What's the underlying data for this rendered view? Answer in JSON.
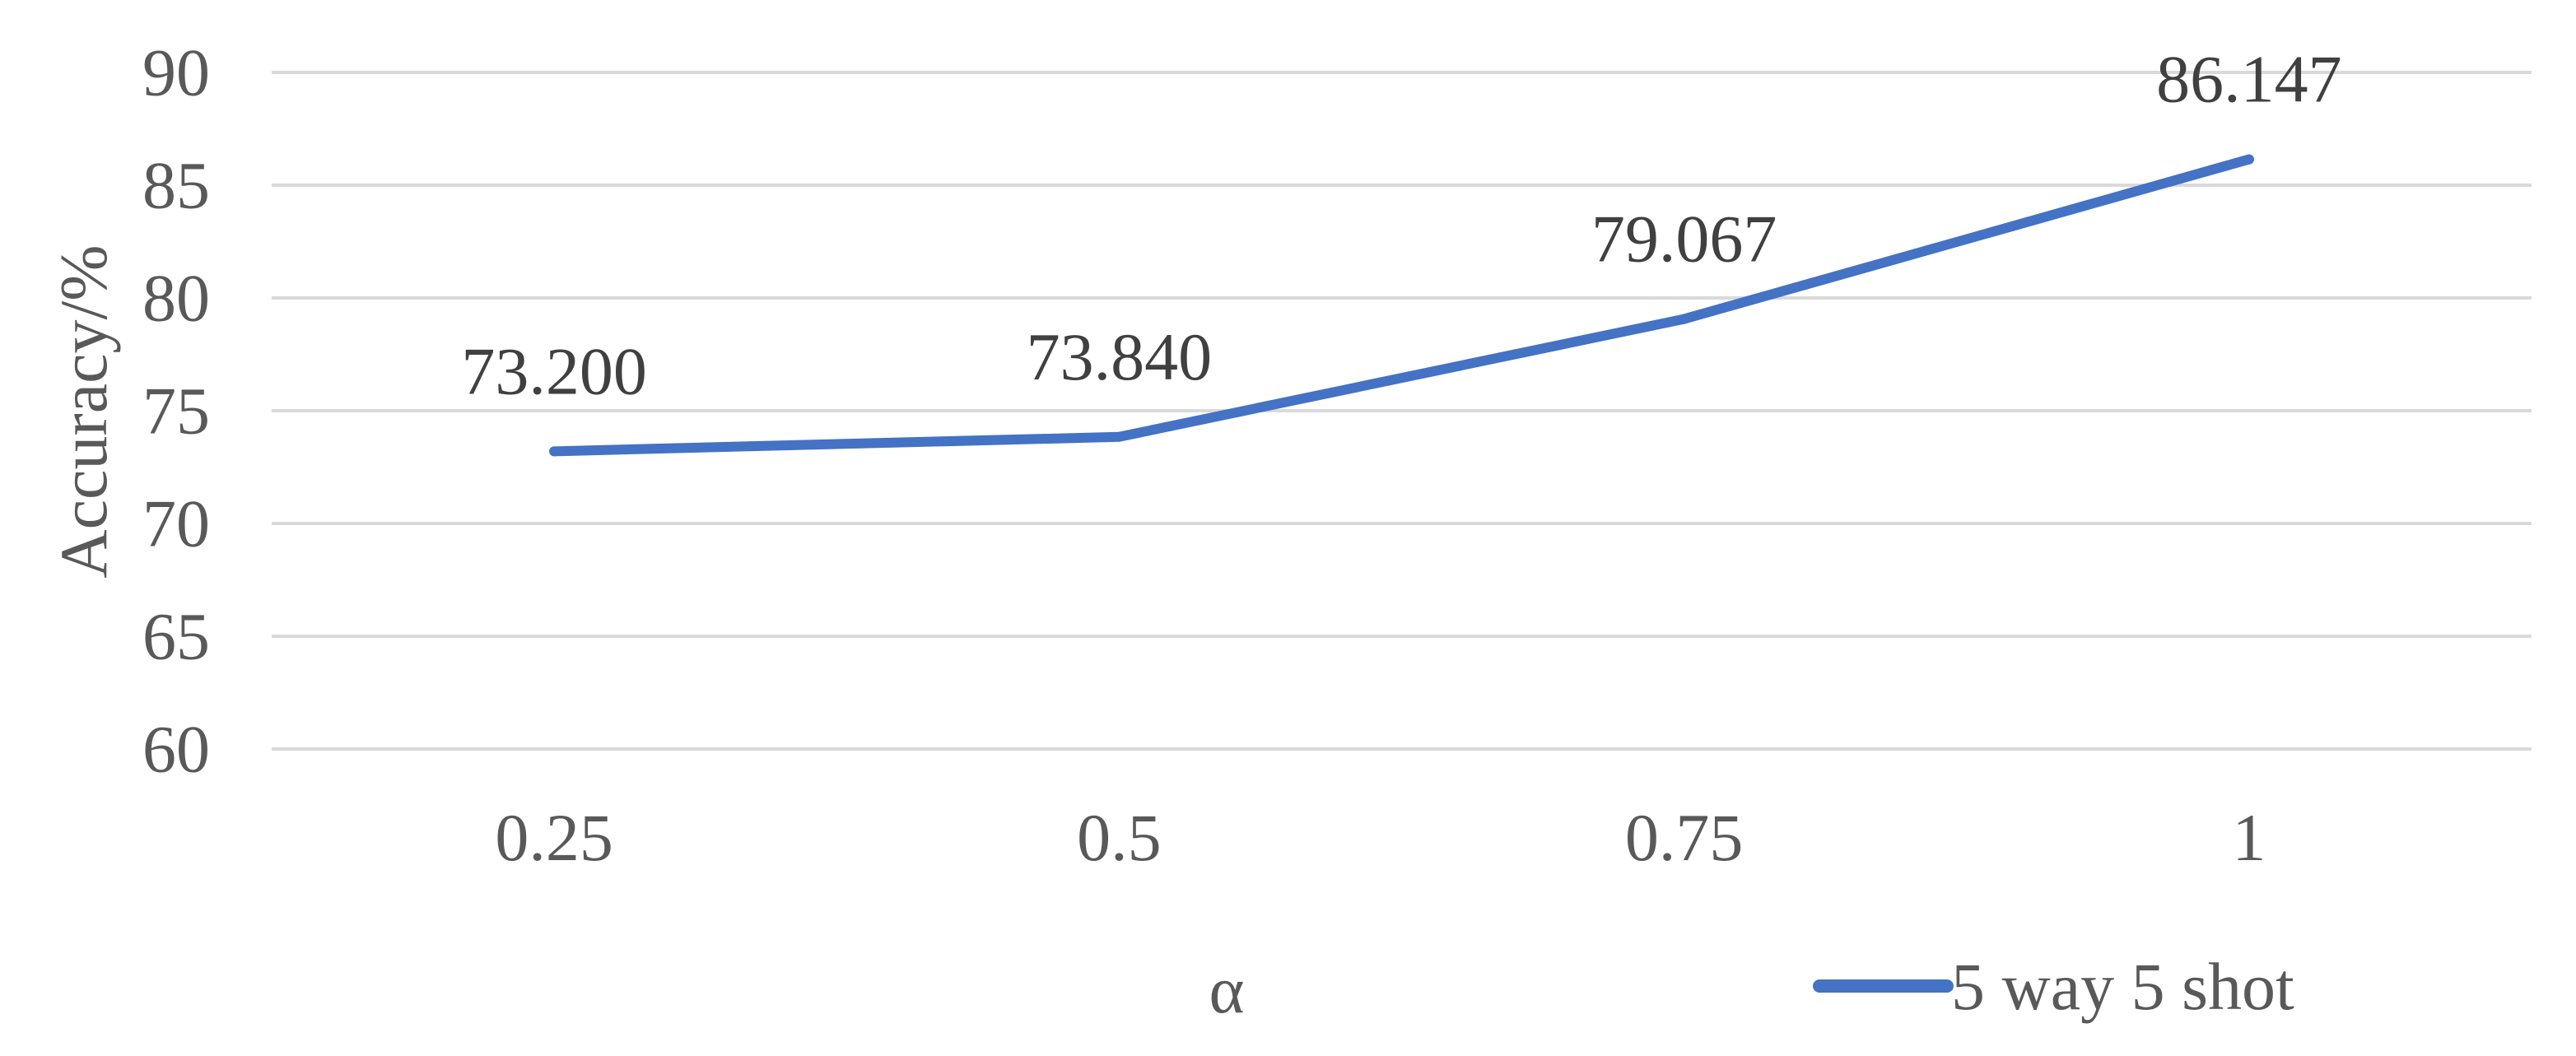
{
  "chart_data": {
    "type": "line",
    "title": "",
    "xlabel": "α",
    "ylabel": "Accuracy/%",
    "categories": [
      "0.25",
      "0.5",
      "0.75",
      "1"
    ],
    "series": [
      {
        "name": "5 way 5 shot",
        "values": [
          73.2,
          73.84,
          79.067,
          86.147
        ],
        "labels": [
          "73.200",
          "73.840",
          "79.067",
          "86.147"
        ]
      }
    ],
    "ylim": [
      60,
      90
    ],
    "yticks": [
      60,
      65,
      70,
      75,
      80,
      85,
      90
    ],
    "grid": true,
    "legend_position": "bottom-right",
    "colors": {
      "series": "#4472c4",
      "grid": "#d9d9d9",
      "text": "#595959"
    }
  }
}
